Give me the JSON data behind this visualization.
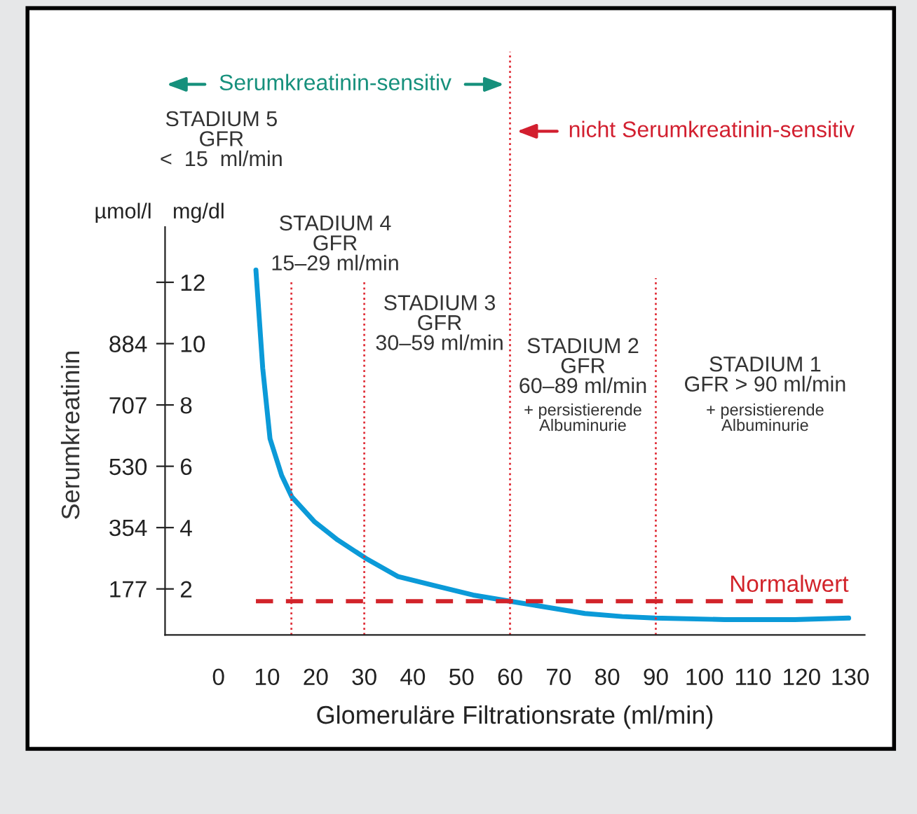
{
  "chart_data": {
    "type": "line",
    "xlabel": "Glomeruläre Filtrationsrate (ml/min)",
    "ylabel": "mg/dl",
    "y2label": "µmol/l",
    "series": [
      {
        "color": "#0b9ad8",
        "x": [
          7.7,
          9.1,
          10.6,
          13,
          15.1,
          19.7,
          24.5,
          30.3,
          37,
          44.7,
          52.4,
          60,
          67.7,
          75.4,
          83.1,
          89.8,
          104.2,
          118.6,
          129.7
        ],
        "values": [
          12.4,
          9.2,
          6.9,
          5.7,
          5.0,
          4.2,
          3.6,
          3.0,
          2.4,
          2.1,
          1.8,
          1.6,
          1.4,
          1.2,
          1.1,
          1.05,
          1.0,
          1.0,
          1.05
        ]
      }
    ],
    "xlim": [
      -11,
      133
    ],
    "xticks": [
      0,
      10,
      20,
      30,
      40,
      50,
      60,
      70,
      80,
      90,
      100,
      110,
      120,
      130
    ],
    "ylim": [
      0.5,
      13.8
    ],
    "yticks": [
      2,
      4,
      6,
      8,
      10,
      12
    ],
    "y2lim": [
      44,
      1220
    ],
    "y2ticks": [
      177,
      354,
      530,
      707,
      884
    ],
    "ref_lines": [
      {
        "axis": "x",
        "value": 15,
        "color": "#e0303a",
        "line_style": "dotted"
      },
      {
        "axis": "x",
        "value": 30,
        "color": "#e0303a",
        "line_style": "dotted"
      },
      {
        "axis": "x",
        "value": 60,
        "color": "#e0303a",
        "line_style": "dotted"
      },
      {
        "axis": "x",
        "value": 90,
        "color": "#e0303a",
        "line_style": "dotted"
      },
      {
        "axis": "y",
        "value": 1.6,
        "label": "Normalwert",
        "color": "#d2232a",
        "line_style": "dashed"
      }
    ],
    "annotations": [
      "Serumkreatinin",
      "Serumkreatinin-sensitiv",
      "nicht Serumkreatinin-sensitiv",
      "STADIUM 5\nGFR\n<  15  ml/min",
      "STADIUM 4\nGFR\n15–29 ml/min",
      "STADIUM 3\nGFR\n30–59 ml/min",
      "STADIUM 2\nGFR\n60–89 ml/min",
      "+ persistierende\nAlbuminurie",
      "STADIUM 1\nGFR > 90 ml/min",
      "+ persistierende\nAlbuminurie"
    ],
    "marker": "none",
    "line_style": "solid",
    "grid": false,
    "legend": false
  }
}
